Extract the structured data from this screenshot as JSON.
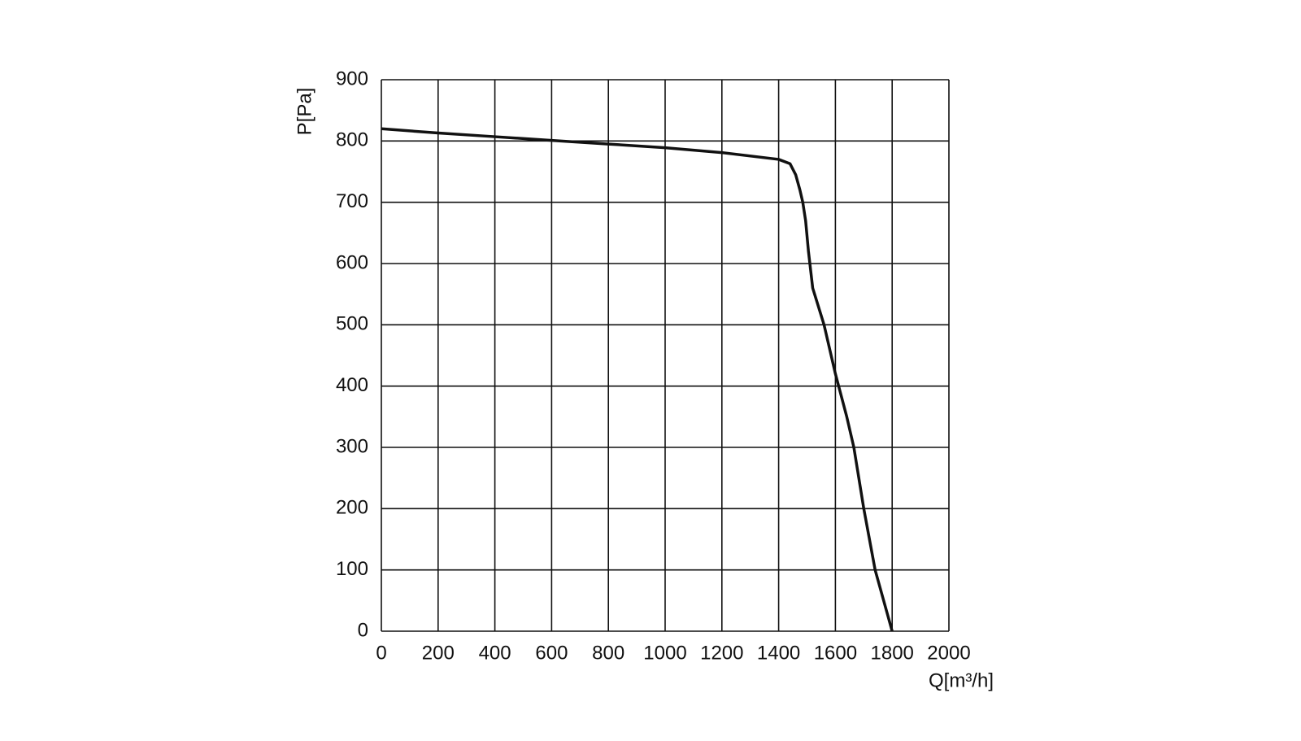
{
  "chart_data": {
    "type": "line",
    "xlabel": "Q[m³/h]",
    "ylabel": "P[Pa]",
    "x": [
      0,
      200,
      400,
      600,
      800,
      1000,
      1200,
      1400,
      1440,
      1460,
      1475,
      1485,
      1495,
      1505,
      1520,
      1560,
      1600,
      1640,
      1665,
      1700,
      1740,
      1800
    ],
    "values": [
      820,
      813,
      807,
      801,
      795,
      789,
      781,
      770,
      763,
      745,
      720,
      700,
      670,
      620,
      560,
      500,
      420,
      350,
      300,
      200,
      100,
      0
    ],
    "color": "#111111",
    "xlim": [
      0,
      2000
    ],
    "xticks": [
      0,
      200,
      400,
      600,
      800,
      1000,
      1200,
      1400,
      1600,
      1800,
      2000
    ],
    "ylim": [
      0,
      900
    ],
    "yticks": [
      0,
      100,
      200,
      300,
      400,
      500,
      600,
      700,
      800,
      900
    ],
    "grid": true
  }
}
